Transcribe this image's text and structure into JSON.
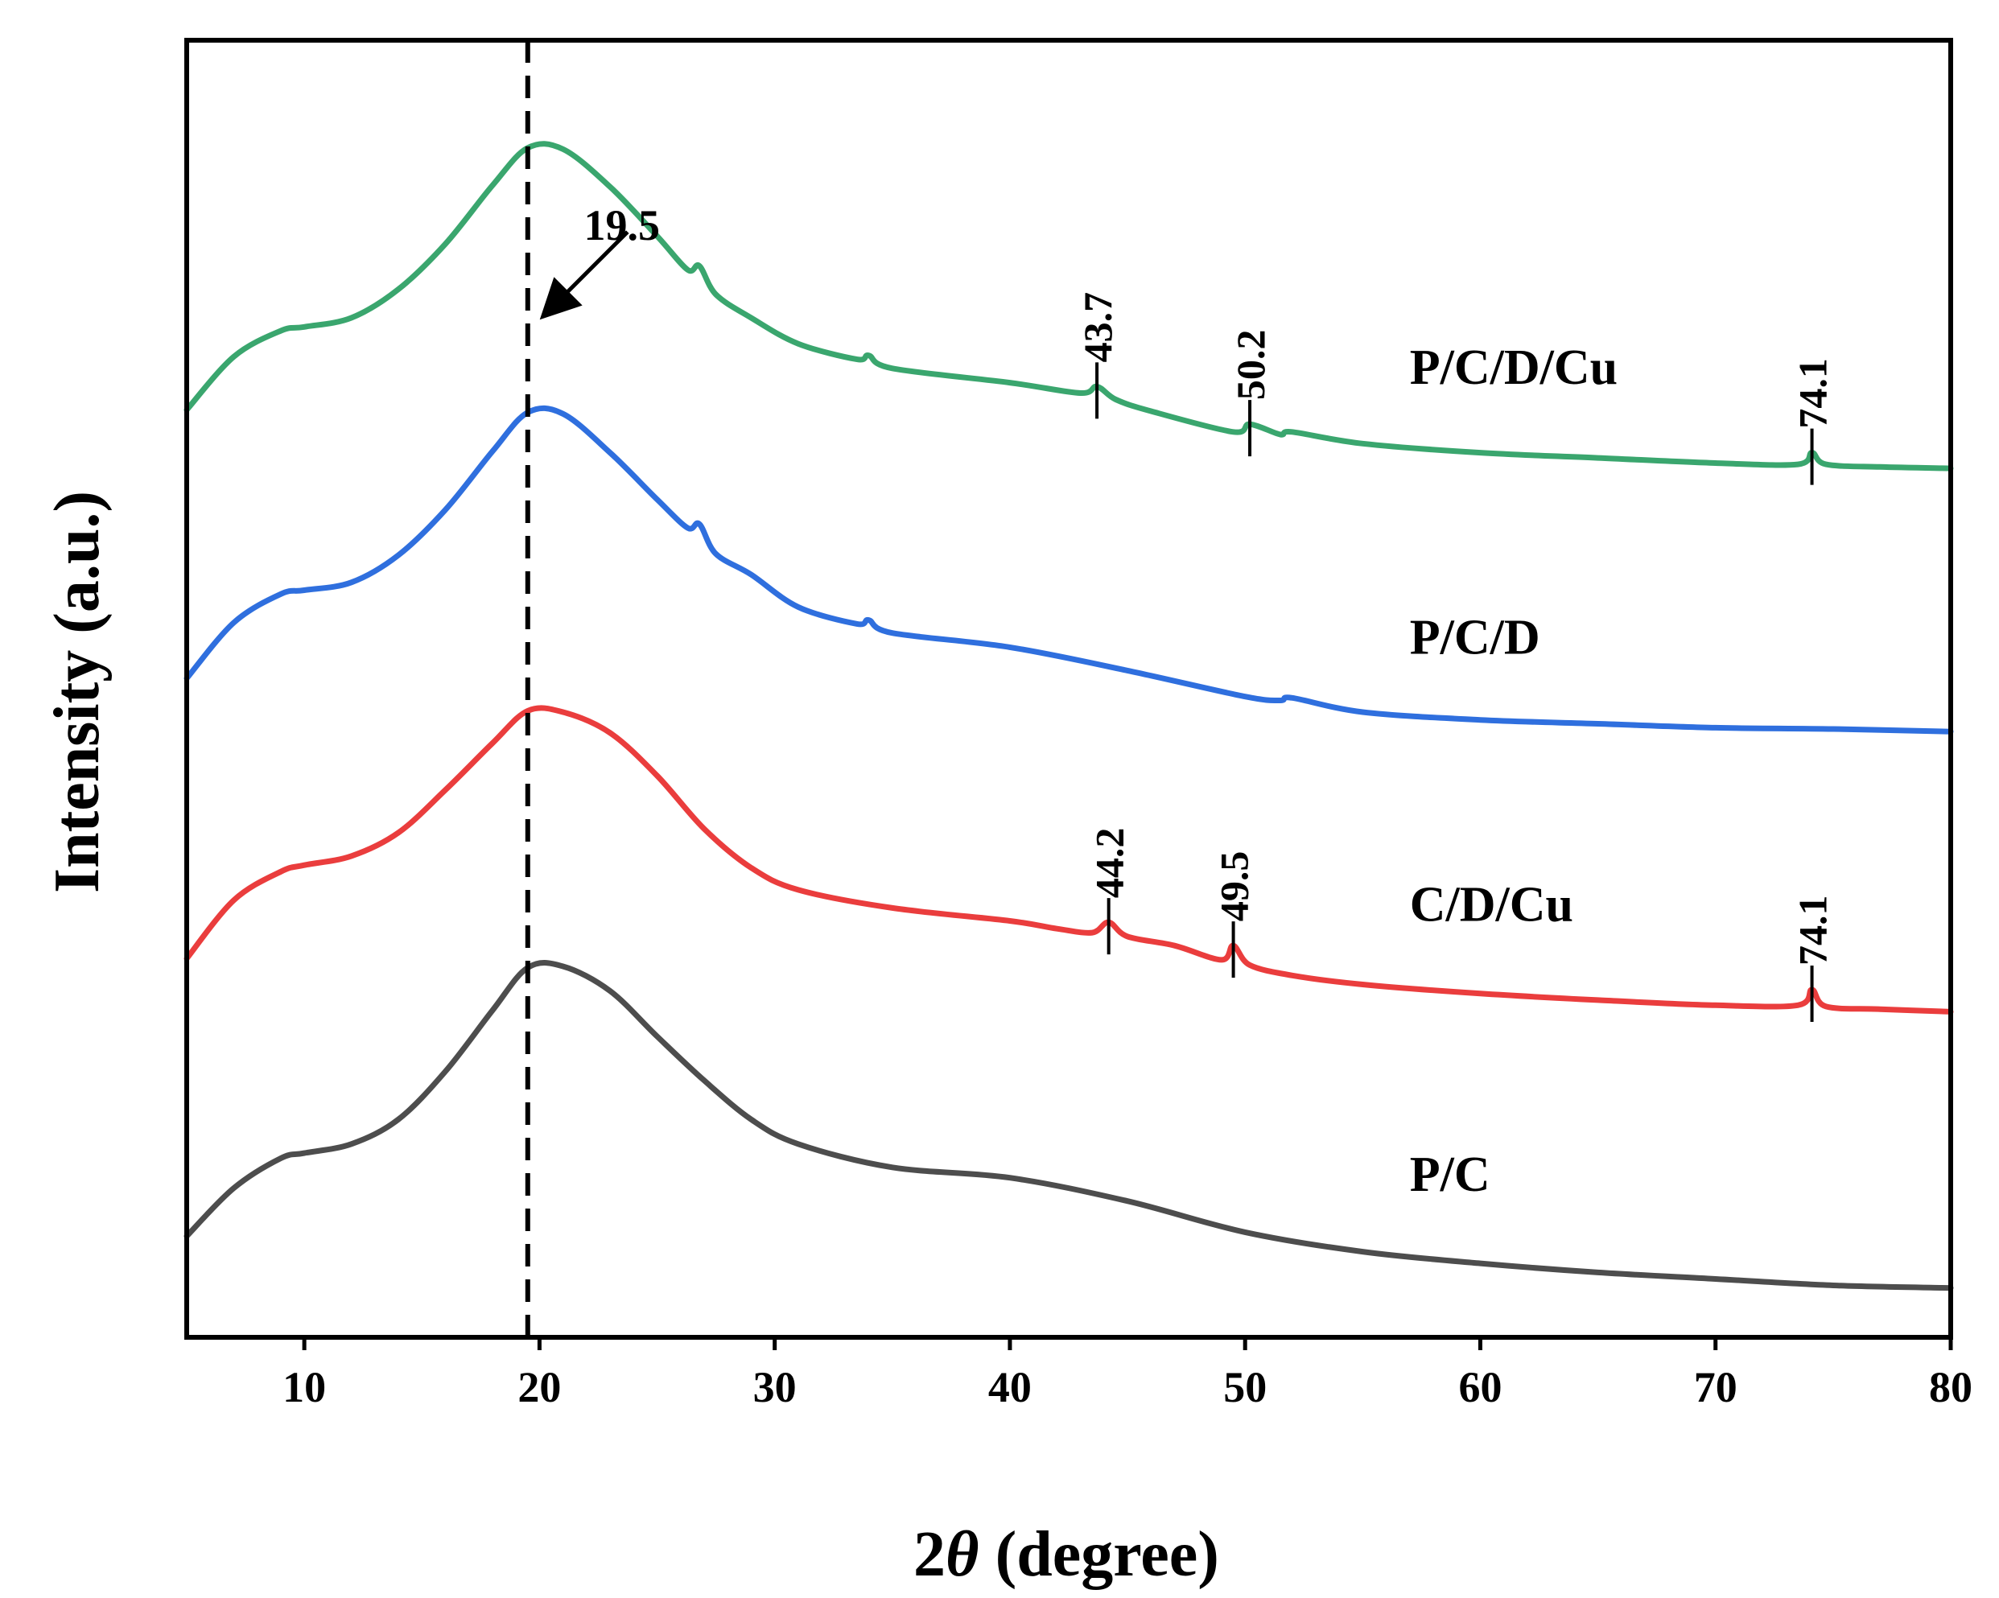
{
  "chart_data": {
    "type": "line",
    "title": "",
    "xlabel": "2θ (degree)",
    "xlabel_parts": {
      "prefix": "2",
      "symbol": "θ",
      "suffix": " (degree)"
    },
    "ylabel": "Intensity (a.u.)",
    "xlim": [
      5,
      80
    ],
    "ylim": [
      0,
      100
    ],
    "yticks_shown": false,
    "xticks": [
      10,
      20,
      30,
      40,
      50,
      60,
      70,
      80
    ],
    "grid": false,
    "legend": "none",
    "reference_line": {
      "x": 19.5,
      "style": "dashed",
      "label": "19.5"
    },
    "series": [
      {
        "name": "P/C",
        "color": "#4d4d4d",
        "x": [
          5,
          7,
          9,
          10,
          12,
          14,
          16,
          18,
          19.5,
          21,
          23,
          25,
          27,
          29,
          31,
          35,
          40,
          45,
          50,
          55,
          60,
          65,
          70,
          75,
          80
        ],
        "y": [
          7.8,
          11.5,
          13.8,
          14.2,
          14.9,
          16.8,
          20.5,
          25.2,
          28.5,
          28.6,
          26.7,
          23.2,
          19.8,
          16.8,
          14.9,
          13.1,
          12.3,
          10.5,
          8.1,
          6.6,
          5.7,
          5.0,
          4.5,
          4.0,
          3.8
        ]
      },
      {
        "name": "C/D/Cu",
        "color": "#ea3d3d",
        "x": [
          5,
          7,
          9,
          10,
          12,
          14,
          16,
          18,
          19.5,
          21,
          23,
          25,
          27,
          29,
          31,
          35,
          40,
          42,
          43.5,
          44.2,
          45,
          47,
          49,
          49.5,
          50.2,
          52,
          55,
          60,
          65,
          70,
          73.5,
          74.1,
          74.7,
          77,
          80
        ],
        "y": [
          29.2,
          33.7,
          35.9,
          36.4,
          37.1,
          38.9,
          42.2,
          45.8,
          48.3,
          48.2,
          46.6,
          43.3,
          39.2,
          36.2,
          34.5,
          33.1,
          32.1,
          31.5,
          31.2,
          32.0,
          30.9,
          30.2,
          29.1,
          30.2,
          28.7,
          27.9,
          27.2,
          26.5,
          26.0,
          25.6,
          25.6,
          26.8,
          25.5,
          25.3,
          25.1
        ]
      },
      {
        "name": "P/C/D",
        "color": "#2f6fde",
        "x": [
          5,
          7,
          9,
          10,
          12,
          14,
          16,
          18,
          19.5,
          21,
          23,
          25,
          26.3,
          26.8,
          27.5,
          29,
          31,
          33.5,
          34,
          35,
          40,
          45,
          50,
          51.5,
          52,
          55,
          60,
          65,
          70,
          75,
          80
        ],
        "y": [
          50.8,
          55.1,
          57.3,
          57.6,
          58.2,
          60.3,
          63.8,
          68.3,
          71.3,
          71.2,
          68.2,
          64.6,
          62.4,
          62.7,
          60.4,
          58.8,
          56.3,
          55.0,
          55.3,
          54.3,
          53.2,
          51.4,
          49.4,
          49.1,
          49.3,
          48.2,
          47.6,
          47.3,
          47.0,
          46.9,
          46.7
        ]
      },
      {
        "name": "P/C/D/Cu",
        "color": "#3aa66e",
        "x": [
          5,
          7,
          9,
          10,
          12,
          14,
          16,
          18,
          19.5,
          21,
          23,
          25,
          26.3,
          26.8,
          27.5,
          29,
          31,
          33.5,
          34,
          35,
          40,
          43,
          43.7,
          44.5,
          46,
          49.5,
          50.2,
          51.5,
          52,
          55,
          60,
          65,
          70,
          73.5,
          74.1,
          74.7,
          77,
          80
        ],
        "y": [
          71.5,
          75.6,
          77.6,
          77.9,
          78.6,
          80.8,
          84.3,
          88.8,
          91.7,
          91.6,
          88.7,
          84.9,
          82.3,
          82.6,
          80.4,
          78.6,
          76.6,
          75.4,
          75.7,
          74.7,
          73.6,
          72.8,
          73.3,
          72.3,
          71.4,
          69.8,
          70.4,
          69.6,
          69.8,
          68.9,
          68.2,
          67.8,
          67.4,
          67.3,
          68.2,
          67.3,
          67.1,
          67.0
        ]
      }
    ],
    "series_labels": [
      {
        "series": "P/C/D/Cu",
        "text": "P/C/D/Cu",
        "x": 57,
        "y": 73.5
      },
      {
        "series": "P/C/D",
        "text": "P/C/D",
        "x": 57,
        "y": 52.7
      },
      {
        "series": "C/D/Cu",
        "text": "C/D/Cu",
        "x": 57,
        "y": 32.1
      },
      {
        "series": "P/C",
        "text": "P/C",
        "x": 57,
        "y": 11.3
      }
    ],
    "peak_annotations": [
      {
        "series": "P/C/D/Cu",
        "label": "43.7",
        "x": 43.7
      },
      {
        "series": "P/C/D/Cu",
        "label": "50.2",
        "x": 50.2
      },
      {
        "series": "P/C/D/Cu",
        "label": "74.1",
        "x": 74.1
      },
      {
        "series": "C/D/Cu",
        "label": "44.2",
        "x": 44.2
      },
      {
        "series": "C/D/Cu",
        "label": "49.5",
        "x": 49.5
      },
      {
        "series": "C/D/Cu",
        "label": "74.1",
        "x": 74.1
      }
    ],
    "arrow_annotation": {
      "text": "19.5",
      "points_to_x": 19.5,
      "points_to_y": 78.4,
      "label_x": 23.5,
      "label_y": 84.6
    }
  }
}
